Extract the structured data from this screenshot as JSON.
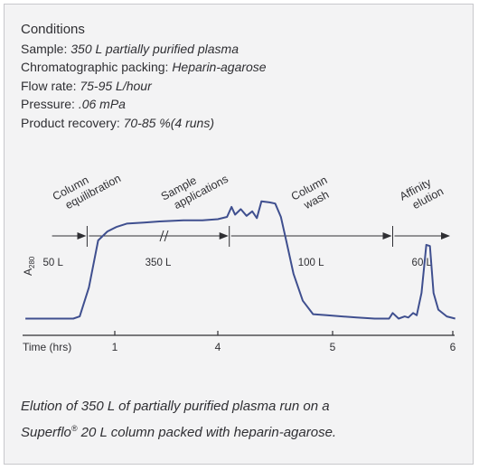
{
  "conditions": {
    "title": "Conditions",
    "rows": [
      {
        "label": "Sample: ",
        "value": "350 L partially purified plasma"
      },
      {
        "label": "Chromatographic packing: ",
        "value": "Heparin-agarose"
      },
      {
        "label": "Flow rate: ",
        "value": "75-95 L/hour"
      },
      {
        "label": "Pressure: ",
        "value": ".06 mPa"
      },
      {
        "label": "Product recovery: ",
        "value": "70-85 %(4 runs)"
      }
    ]
  },
  "chart_data": {
    "type": "line",
    "title": "",
    "xlabel": "Time (hrs)",
    "ylabel": "A280",
    "ylabel_main": "A",
    "ylabel_sub": "280",
    "x_ticks": [
      1,
      4,
      5,
      6
    ],
    "x_tick_labels": [
      "1",
      "4",
      "5",
      "6"
    ],
    "colors": {
      "trace": "#3f4f8f",
      "axis": "#2f2f33",
      "text": "#2f2f33"
    },
    "phases": [
      {
        "name": "Column equilibration",
        "lines": [
          "Column",
          "equilibration"
        ],
        "volume": "50 L",
        "start": 0.3,
        "end": 0.7
      },
      {
        "name": "Sample applications",
        "lines": [
          "Sample",
          "applications"
        ],
        "volume": "350 L",
        "start": 0.7,
        "end": 4.1
      },
      {
        "name": "Column wash",
        "lines": [
          "Column",
          "wash"
        ],
        "volume": "100 L",
        "start": 4.1,
        "end": 5.5
      },
      {
        "name": "Affinity elution",
        "lines": [
          "Affinity",
          "elution"
        ],
        "volume": "60 L",
        "start": 5.5,
        "end": 6
      }
    ],
    "series": [
      {
        "name": "",
        "points": [
          [
            0.03,
            0.02
          ],
          [
            0.55,
            0.02
          ],
          [
            0.62,
            0.04
          ],
          [
            0.72,
            0.3
          ],
          [
            0.82,
            0.72
          ],
          [
            0.92,
            0.8
          ],
          [
            1.05,
            0.84
          ],
          [
            1.35,
            0.87
          ],
          [
            1.85,
            0.88
          ],
          [
            2.3,
            0.89
          ],
          [
            3.0,
            0.9
          ],
          [
            3.55,
            0.9
          ],
          [
            4.0,
            0.91
          ],
          [
            4.08,
            0.93
          ],
          [
            4.12,
            1.02
          ],
          [
            4.15,
            0.95
          ],
          [
            4.2,
            1.0
          ],
          [
            4.25,
            0.94
          ],
          [
            4.3,
            0.98
          ],
          [
            4.34,
            0.92
          ],
          [
            4.38,
            1.07
          ],
          [
            4.45,
            1.06
          ],
          [
            4.5,
            1.05
          ],
          [
            4.55,
            0.93
          ],
          [
            4.6,
            0.7
          ],
          [
            4.66,
            0.42
          ],
          [
            4.74,
            0.18
          ],
          [
            4.83,
            0.06
          ],
          [
            4.95,
            0.05
          ],
          [
            5.2,
            0.03
          ],
          [
            5.35,
            0.02
          ],
          [
            5.47,
            0.02
          ],
          [
            5.5,
            0.07
          ],
          [
            5.55,
            0.02
          ],
          [
            5.6,
            0.04
          ],
          [
            5.63,
            0.03
          ],
          [
            5.67,
            0.07
          ],
          [
            5.7,
            0.05
          ],
          [
            5.74,
            0.25
          ],
          [
            5.78,
            0.68
          ],
          [
            5.81,
            0.67
          ],
          [
            5.84,
            0.25
          ],
          [
            5.88,
            0.1
          ],
          [
            5.95,
            0.04
          ],
          [
            6.02,
            0.02
          ]
        ]
      }
    ],
    "xlim": [
      0,
      6.05
    ],
    "ylim": [
      0,
      1.1
    ]
  },
  "caption": {
    "prefix": "Elution of 350 L of partially purified plasma run on a",
    "brand": "Superflo",
    "reg": "®",
    "suffix": " 20 L column packed with heparin-agarose."
  }
}
